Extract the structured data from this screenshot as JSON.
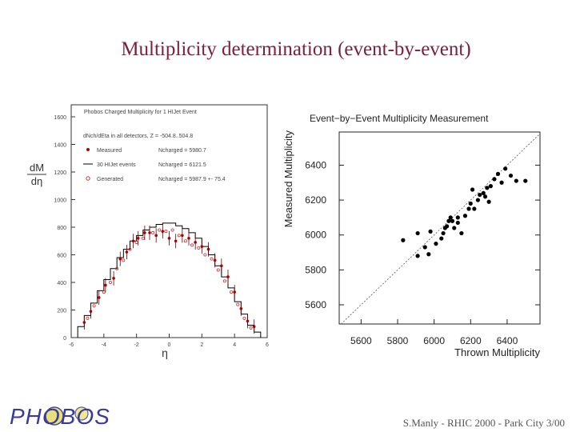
{
  "slide": {
    "title": "Multiplicity determination (event-by-event)",
    "footer": "S.Manly - RHIC 2000 - Park City 3/00",
    "logo_text": "PHOBOS"
  },
  "chart_data": [
    {
      "type": "line",
      "title": "Phobos Charged Multiplicity for 1 HIJet Event",
      "subtitle": "dNch/dEta in all detectors, Z = -504.8..504.8",
      "xlabel": "η",
      "ylabel": "dM/dη",
      "xlim": [
        -6,
        6
      ],
      "ylim": [
        0,
        1600
      ],
      "xticks": [
        "-6",
        "-4",
        "-2",
        "0",
        "2",
        "4",
        "6"
      ],
      "yticks": [
        "0",
        "200",
        "400",
        "600",
        "800",
        "1000",
        "1200",
        "1400",
        "1600"
      ],
      "legend": [
        {
          "name": "Measured",
          "stat": "Ncharged = 5980.7"
        },
        {
          "name": "30 HIJet events",
          "stat": "Ncharged = 6121.5"
        },
        {
          "name": "Generated",
          "stat": "Ncharged = 5987.9 +- 75.4"
        }
      ],
      "legend_placement": "top",
      "series": [
        {
          "name": "30 HIJet events",
          "style": "step",
          "color": "#000000",
          "x": [
            -5.4,
            -5.0,
            -4.6,
            -4.2,
            -3.8,
            -3.4,
            -3.0,
            -2.6,
            -2.2,
            -1.8,
            -1.4,
            -1.0,
            -0.6,
            -0.2,
            0.2,
            0.6,
            1.0,
            1.4,
            1.8,
            2.2,
            2.6,
            3.0,
            3.4,
            3.8,
            4.2,
            4.6,
            5.0,
            5.4
          ],
          "y": [
            80,
            160,
            250,
            340,
            420,
            500,
            580,
            640,
            700,
            740,
            780,
            800,
            820,
            830,
            830,
            810,
            790,
            760,
            720,
            660,
            600,
            520,
            440,
            360,
            260,
            170,
            90,
            40
          ]
        },
        {
          "name": "Measured",
          "style": "points",
          "color": "#aa0000",
          "x": [
            -5.2,
            -4.8,
            -4.3,
            -3.9,
            -3.4,
            -3.0,
            -2.6,
            -2.2,
            -1.9,
            -1.5,
            -1.2,
            -0.8,
            -0.4,
            0.0,
            0.4,
            0.8,
            1.2,
            1.6,
            2.0,
            2.4,
            2.8,
            3.2,
            3.6,
            4.0,
            4.4,
            4.8,
            5.2
          ],
          "y": [
            110,
            190,
            290,
            380,
            430,
            570,
            620,
            700,
            720,
            760,
            760,
            740,
            770,
            720,
            700,
            740,
            720,
            690,
            660,
            640,
            560,
            520,
            440,
            330,
            210,
            120,
            80
          ]
        },
        {
          "name": "Generated",
          "style": "open-circles",
          "color": "#cc3333",
          "x": [
            -5.0,
            -4.6,
            -4.0,
            -3.6,
            -3.2,
            -2.8,
            -2.4,
            -2.0,
            -1.6,
            -1.0,
            -0.6,
            -0.2,
            0.2,
            0.6,
            1.0,
            1.4,
            1.8,
            2.2,
            2.6,
            3.0,
            3.4,
            3.8,
            4.2,
            4.6,
            5.0
          ],
          "y": [
            140,
            230,
            330,
            400,
            500,
            560,
            640,
            690,
            720,
            760,
            780,
            770,
            780,
            740,
            700,
            670,
            650,
            600,
            570,
            490,
            410,
            330,
            240,
            140,
            70
          ]
        }
      ]
    },
    {
      "type": "scatter",
      "title": "Event−by−Event Multiplicity Measurement",
      "xlabel": "Thrown Multiplicity",
      "ylabel": "Measured Multiplicity",
      "xlim": [
        5480,
        6580
      ],
      "ylim": [
        5490,
        6590
      ],
      "xticks": [
        "5600",
        "5800",
        "6000",
        "6200",
        "6400"
      ],
      "yticks": [
        "5600",
        "5800",
        "6000",
        "6200",
        "6400"
      ],
      "reference_line": "y = x",
      "series": [
        {
          "style": "points",
          "color": "#000000",
          "x": [
            5830,
            5910,
            5950,
            5970,
            6010,
            6040,
            6050,
            6060,
            6070,
            6080,
            6090,
            6100,
            6110,
            6130,
            6150,
            6170,
            6190,
            6200,
            6220,
            6240,
            6250,
            6270,
            6290,
            6300,
            6310,
            6330,
            6350,
            6370,
            6390,
            6420,
            6450,
            6500,
            5910,
            5980,
            6130,
            6210,
            6280
          ],
          "y": [
            5970,
            6010,
            5930,
            5890,
            5950,
            5980,
            6010,
            6040,
            6050,
            6080,
            6100,
            6080,
            6040,
            6070,
            6010,
            6110,
            6150,
            6180,
            6150,
            6200,
            6230,
            6240,
            6270,
            6190,
            6280,
            6320,
            6350,
            6300,
            6380,
            6340,
            6310,
            6310,
            5880,
            6020,
            6100,
            6260,
            6220
          ]
        }
      ]
    }
  ]
}
